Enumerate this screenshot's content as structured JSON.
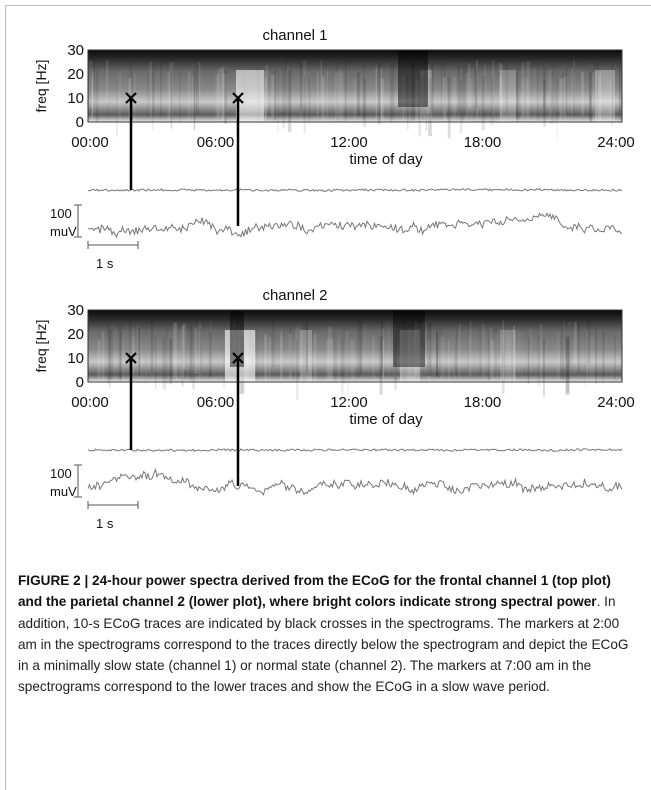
{
  "figure": {
    "panels": [
      {
        "title": "channel 1",
        "y_label": "freq [Hz]",
        "y_ticks": [
          "0",
          "10",
          "20",
          "30"
        ],
        "x_ticks": [
          "00:00",
          "06:00",
          "12:00",
          "18:00",
          "24:00"
        ],
        "x_label": "time of day",
        "amplitude_scale": "100",
        "amplitude_unit": "muV",
        "time_scale": "1 s"
      },
      {
        "title": "channel 2",
        "y_label": "freq [Hz]",
        "y_ticks": [
          "0",
          "10",
          "20",
          "30"
        ],
        "x_ticks": [
          "00:00",
          "06:00",
          "12:00",
          "18:00",
          "24:00"
        ],
        "x_label": "time of day",
        "amplitude_scale": "100",
        "amplitude_unit": "muV",
        "time_scale": "1 s"
      }
    ]
  },
  "caption": {
    "heading": "FIGURE 2 | 24-hour power spectra derived from the ECoG for the frontal channel 1 (top plot) and the parietal channel 2 (lower plot), where bright colors indicate strong spectral power",
    "text": ". In addition, 10-s ECoG traces are indicated by black crosses in the spectrograms. The markers at 2:00 am in the spectrograms correspond to the traces directly below the spectrogram and depict the ECoG in a minimally slow state (channel 1) or normal state (channel 2). The markers at 7:00 am in the spectrograms correspond to the lower traces and show the ECoG in a slow wave period."
  }
}
